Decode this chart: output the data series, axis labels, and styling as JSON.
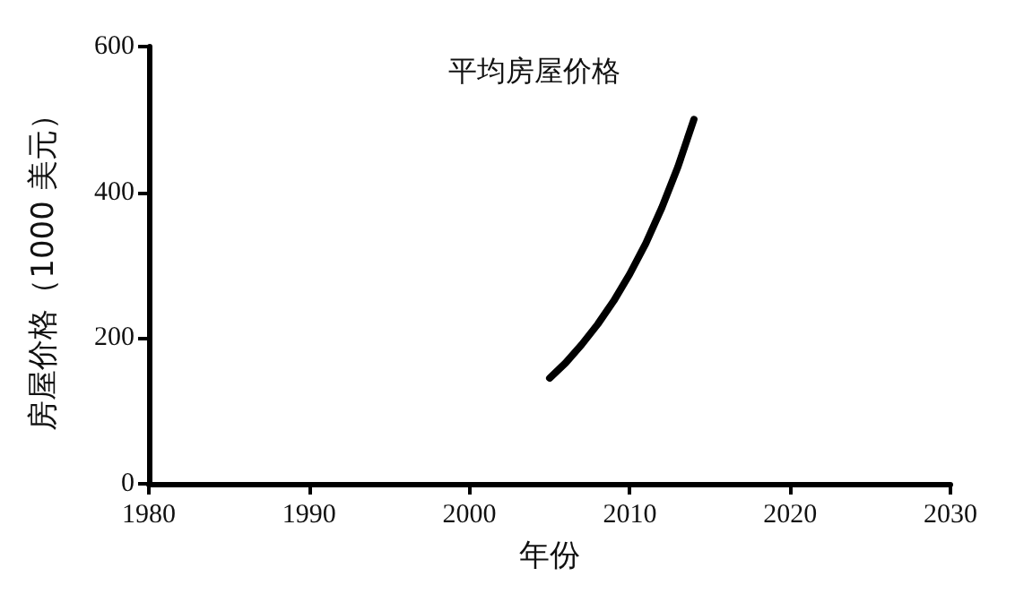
{
  "chart_data": {
    "type": "line",
    "xlabel": "年份",
    "ylabel": "房屋价格（1000 美元）",
    "xlim": [
      1980,
      2030
    ],
    "xticks": [
      1980,
      1990,
      2000,
      2010,
      2020,
      2030
    ],
    "ylim": [
      0,
      600
    ],
    "yticks": [
      0,
      200,
      400,
      600
    ],
    "grid": false,
    "legend": false,
    "marker": "none",
    "line_style": "solid",
    "series": [
      {
        "name": "平均房屋价格",
        "color": "#000000",
        "x": [
          2005,
          2006,
          2007,
          2008,
          2009,
          2010,
          2011,
          2012,
          2013,
          2014
        ],
        "values": [
          145,
          166,
          191,
          219,
          251,
          288,
          330,
          379,
          435,
          500
        ]
      }
    ]
  }
}
